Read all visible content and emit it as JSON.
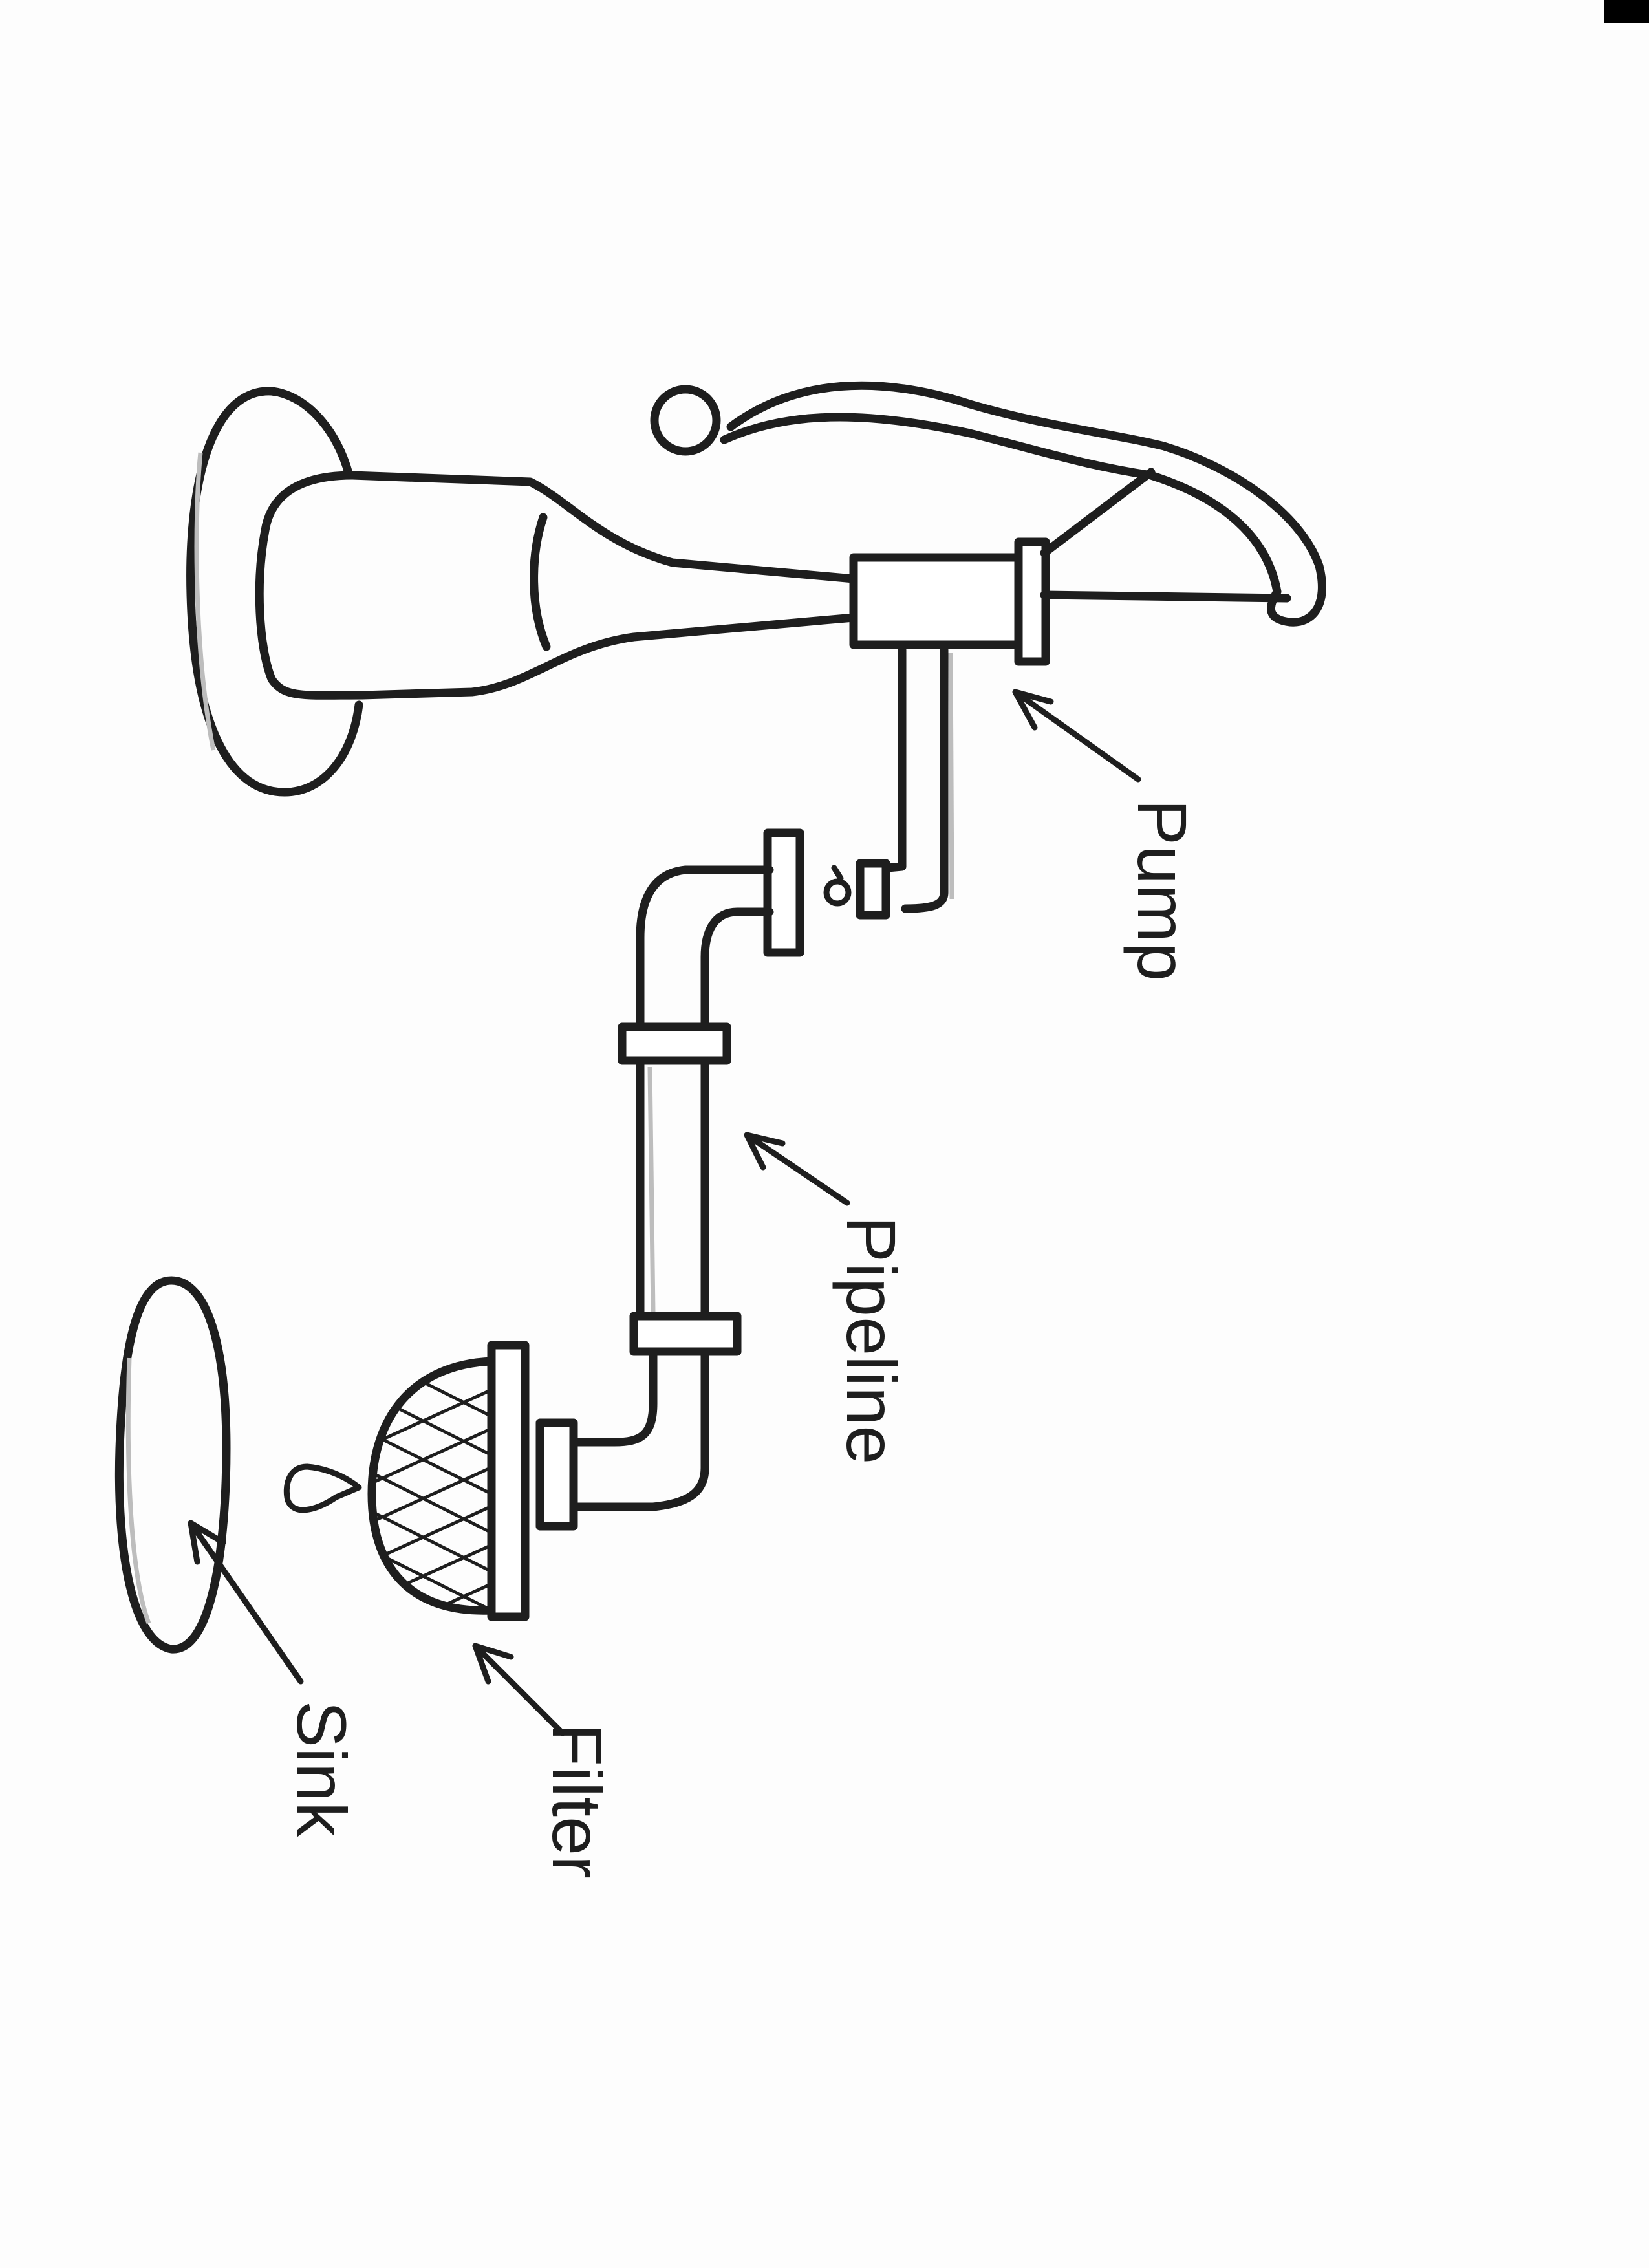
{
  "labels": {
    "pump": "Pump",
    "pipeline": "Pipeline",
    "filter": "Filter",
    "sink": "Sink"
  },
  "colors": {
    "ink": "#1e1e1e",
    "paper": "#fdfdfd"
  }
}
